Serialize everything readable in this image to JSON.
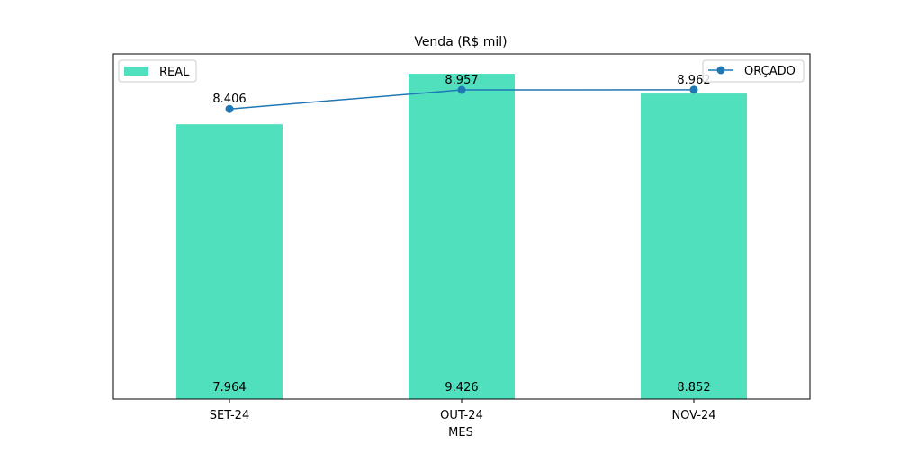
{
  "chart_data": {
    "type": "bar",
    "title": "Venda (R$ mil)",
    "xlabel": "MES",
    "ylabel": "",
    "categories": [
      "SET-24",
      "OUT-24",
      "NOV-24"
    ],
    "ylim": [
      0,
      10000
    ],
    "y_axis_visible": false,
    "grid": false,
    "series": [
      {
        "name": "REAL",
        "type": "bar",
        "values": [
          7964,
          9426,
          8852
        ],
        "labels": [
          "7.964",
          "9.426",
          "8.852"
        ],
        "color": "#50e0bd",
        "legend_position": "top-left"
      },
      {
        "name": "ORÇADO",
        "type": "line",
        "marker": "circle",
        "values": [
          8406,
          8957,
          8962
        ],
        "labels": [
          "8.406",
          "8.957",
          "8.962"
        ],
        "color": "#1f77b4",
        "legend_position": "top-right"
      }
    ]
  }
}
